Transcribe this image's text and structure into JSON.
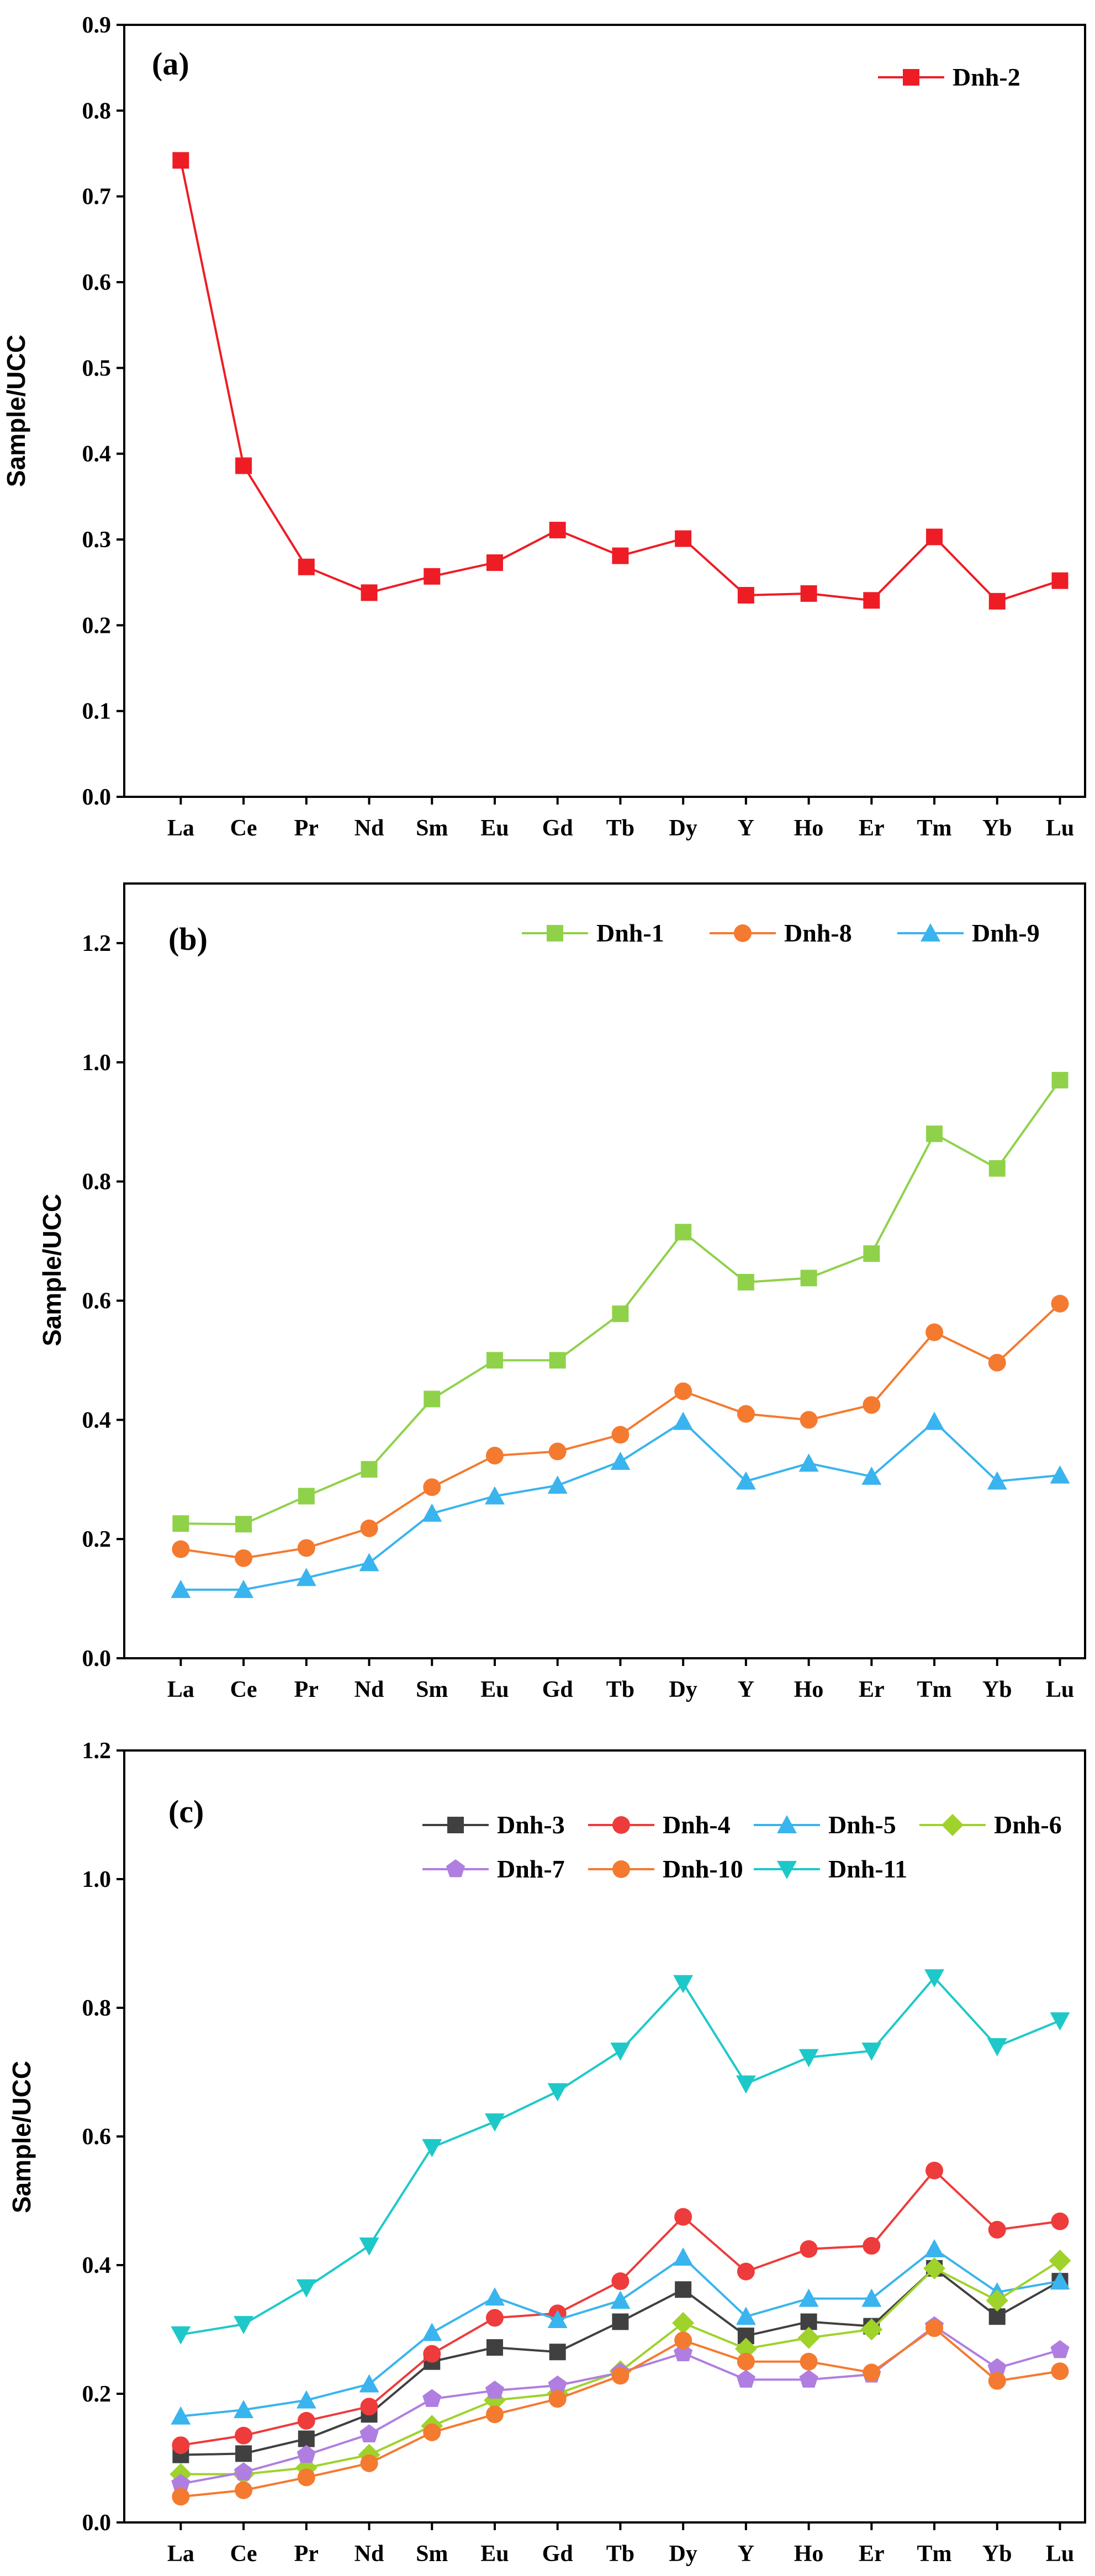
{
  "chart_data": [
    {
      "type": "line",
      "panel_label": "(a)",
      "ylabel": "Sample/UCC",
      "xlabel": "",
      "categories": [
        "La",
        "Ce",
        "Pr",
        "Nd",
        "Sm",
        "Eu",
        "Gd",
        "Tb",
        "Dy",
        "Y",
        "Ho",
        "Er",
        "Tm",
        "Yb",
        "Lu"
      ],
      "ylim": [
        0,
        0.9
      ],
      "yticks": [
        0.0,
        0.1,
        0.2,
        0.3,
        0.4,
        0.5,
        0.6,
        0.7,
        0.8,
        0.9
      ],
      "ytick_labels": [
        "0.0",
        "0.1",
        "0.2",
        "0.3",
        "0.4",
        "0.5",
        "0.6",
        "0.7",
        "0.8",
        "0.9"
      ],
      "legend_position": "top-right",
      "legend_columns": 1,
      "series": [
        {
          "name": "Dnh-2",
          "color": "#ee1c25",
          "marker": "square",
          "values": [
            0.742,
            0.386,
            0.268,
            0.238,
            0.257,
            0.273,
            0.311,
            0.281,
            0.301,
            0.235,
            0.237,
            0.229,
            0.303,
            0.228,
            0.252
          ]
        }
      ]
    },
    {
      "type": "line",
      "panel_label": "(b)",
      "ylabel": "Sample/UCC",
      "xlabel": "",
      "categories": [
        "La",
        "Ce",
        "Pr",
        "Nd",
        "Sm",
        "Eu",
        "Gd",
        "Tb",
        "Dy",
        "Y",
        "Ho",
        "Er",
        "Tm",
        "Yb",
        "Lu"
      ],
      "ylim": [
        0,
        1.3
      ],
      "yticks": [
        0.0,
        0.2,
        0.4,
        0.6,
        0.8,
        1.0,
        1.2
      ],
      "ytick_labels": [
        "0.0",
        "0.2",
        "0.4",
        "0.6",
        "0.8",
        "1.0",
        "1.2"
      ],
      "legend_position": "top-right",
      "legend_columns": 3,
      "series": [
        {
          "name": "Dnh-1",
          "color": "#8fd24a",
          "marker": "square",
          "values": [
            0.226,
            0.225,
            0.272,
            0.317,
            0.435,
            0.5,
            0.5,
            0.578,
            0.715,
            0.631,
            0.638,
            0.679,
            0.88,
            0.822,
            0.97
          ]
        },
        {
          "name": "Dnh-8",
          "color": "#f47a30",
          "marker": "circle",
          "values": [
            0.183,
            0.168,
            0.185,
            0.218,
            0.287,
            0.34,
            0.347,
            0.375,
            0.448,
            0.41,
            0.4,
            0.425,
            0.547,
            0.496,
            0.595
          ]
        },
        {
          "name": "Dnh-9",
          "color": "#3ab4ee",
          "marker": "triangle",
          "values": [
            0.115,
            0.115,
            0.135,
            0.16,
            0.243,
            0.272,
            0.29,
            0.33,
            0.397,
            0.297,
            0.327,
            0.305,
            0.397,
            0.297,
            0.307
          ]
        }
      ]
    },
    {
      "type": "line",
      "panel_label": "(c)",
      "ylabel": "Sample/UCC",
      "xlabel": "",
      "categories": [
        "La",
        "Ce",
        "Pr",
        "Nd",
        "Sm",
        "Eu",
        "Gd",
        "Tb",
        "Dy",
        "Y",
        "Ho",
        "Er",
        "Tm",
        "Yb",
        "Lu"
      ],
      "ylim": [
        0,
        1.2
      ],
      "yticks": [
        0.0,
        0.2,
        0.4,
        0.6,
        0.8,
        1.0,
        1.2
      ],
      "ytick_labels": [
        "0.0",
        "0.2",
        "0.4",
        "0.6",
        "0.8",
        "1.0",
        "1.2"
      ],
      "legend_position": "top-right",
      "legend_columns": 4,
      "series": [
        {
          "name": "Dnh-3",
          "color": "#404040",
          "marker": "square",
          "values": [
            0.105,
            0.107,
            0.13,
            0.168,
            0.25,
            0.272,
            0.265,
            0.312,
            0.362,
            0.29,
            0.312,
            0.305,
            0.395,
            0.32,
            0.375
          ]
        },
        {
          "name": "Dnh-4",
          "color": "#ee3b3b",
          "marker": "circle",
          "values": [
            0.12,
            0.135,
            0.158,
            0.18,
            0.262,
            0.318,
            0.325,
            0.375,
            0.475,
            0.39,
            0.425,
            0.43,
            0.547,
            0.455,
            0.468
          ]
        },
        {
          "name": "Dnh-5",
          "color": "#3ab4ee",
          "marker": "triangle",
          "values": [
            0.165,
            0.175,
            0.19,
            0.215,
            0.295,
            0.35,
            0.315,
            0.345,
            0.412,
            0.32,
            0.348,
            0.348,
            0.425,
            0.358,
            0.375
          ]
        },
        {
          "name": "Dnh-6",
          "color": "#9fd22b",
          "marker": "diamond",
          "values": [
            0.075,
            0.075,
            0.085,
            0.105,
            0.15,
            0.19,
            0.2,
            0.235,
            0.31,
            0.27,
            0.287,
            0.3,
            0.395,
            0.345,
            0.407
          ]
        },
        {
          "name": "Dnh-7",
          "color": "#b07ee0",
          "marker": "pentagon",
          "values": [
            0.06,
            0.078,
            0.105,
            0.137,
            0.192,
            0.205,
            0.213,
            0.233,
            0.263,
            0.222,
            0.222,
            0.23,
            0.305,
            0.24,
            0.268
          ]
        },
        {
          "name": "Dnh-10",
          "color": "#f47a30",
          "marker": "circle",
          "values": [
            0.04,
            0.05,
            0.07,
            0.092,
            0.14,
            0.168,
            0.192,
            0.228,
            0.283,
            0.25,
            0.25,
            0.233,
            0.302,
            0.22,
            0.235
          ]
        },
        {
          "name": "Dnh-11",
          "color": "#1fc8c8",
          "marker": "triangle-down",
          "values": [
            0.292,
            0.308,
            0.365,
            0.43,
            0.583,
            0.623,
            0.67,
            0.733,
            0.838,
            0.682,
            0.723,
            0.733,
            0.847,
            0.74,
            0.78
          ]
        }
      ]
    }
  ]
}
